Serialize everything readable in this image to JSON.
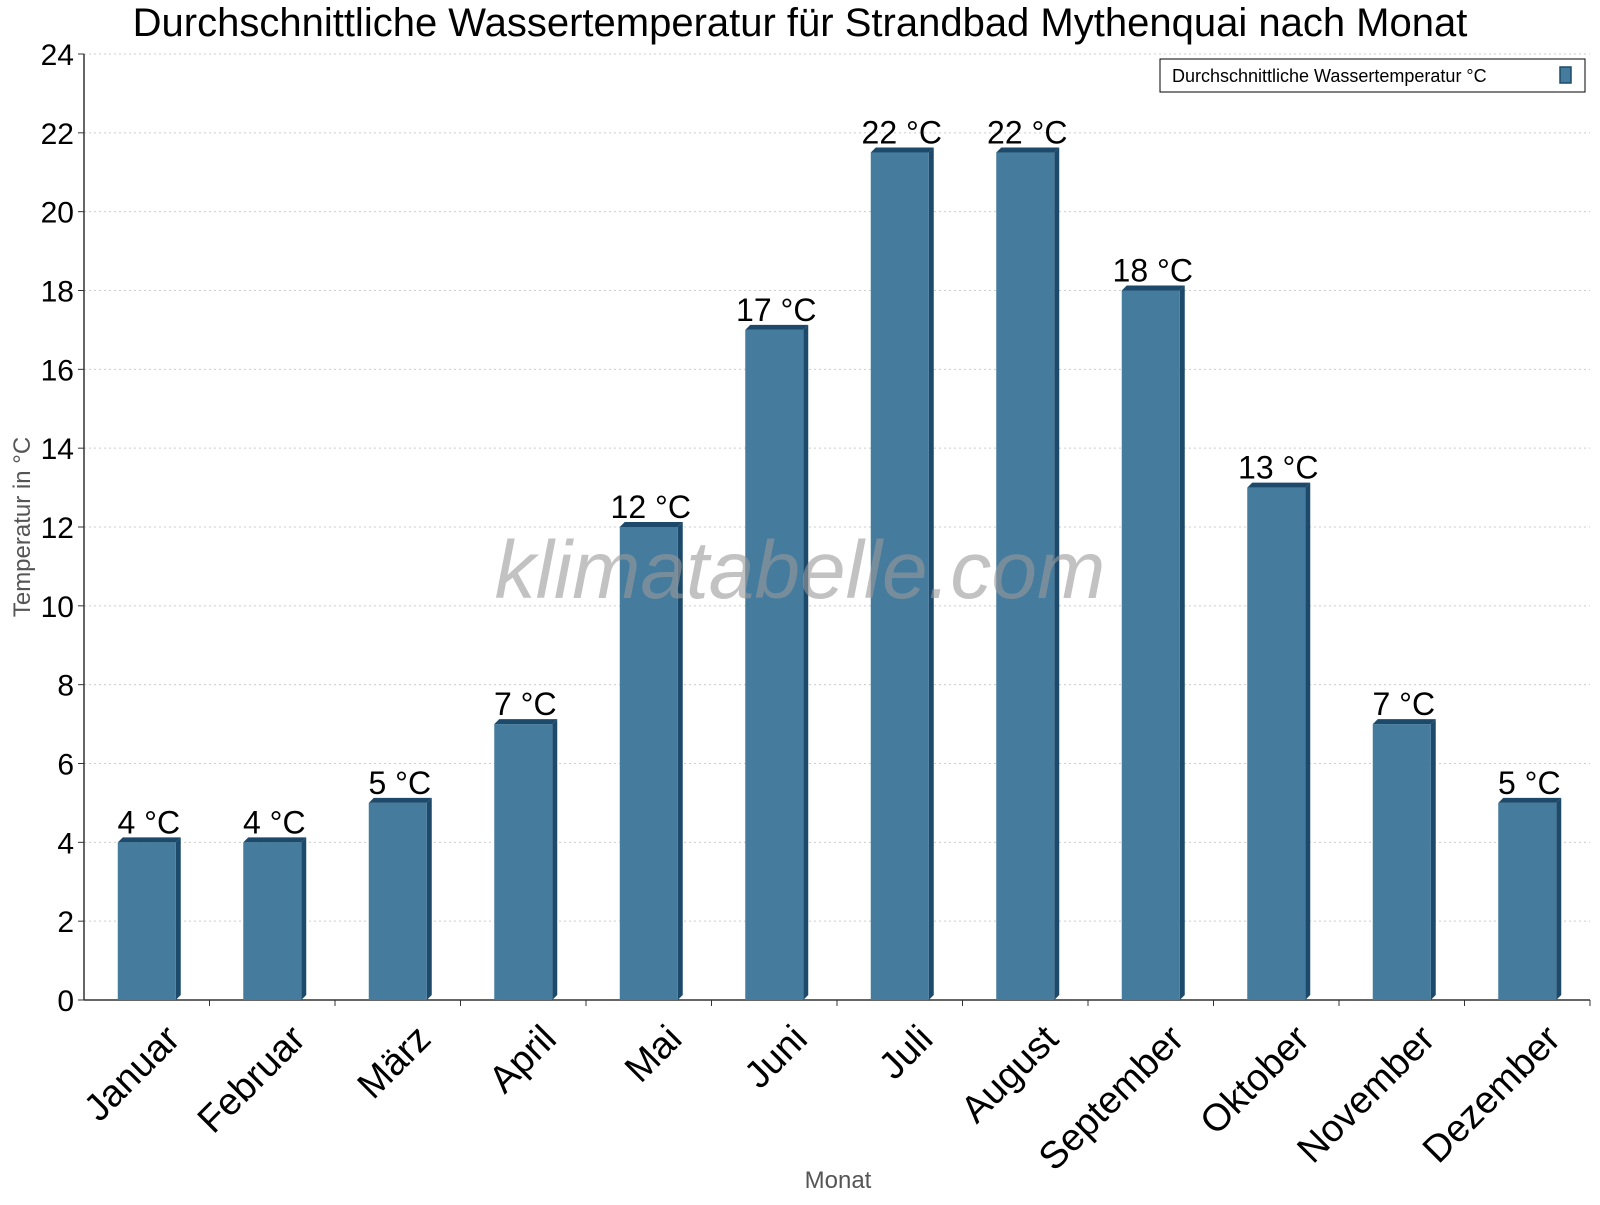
{
  "chart_data": {
    "type": "bar",
    "title": "Durchschnittliche Wassertemperatur für Strandbad Mythenquai nach Monat",
    "xlabel": "Monat",
    "ylabel": "Temperatur in °C",
    "watermark": "klimatabelle.com",
    "legend": {
      "label": "Durchschnittliche Wassertemperatur °C",
      "placement": "top-right"
    },
    "ylim": [
      0,
      24
    ],
    "yticks": [
      0,
      2,
      4,
      6,
      8,
      10,
      12,
      14,
      16,
      18,
      20,
      22,
      24
    ],
    "grid": true,
    "categories": [
      "Januar",
      "Februar",
      "März",
      "April",
      "Mai",
      "Juni",
      "Juli",
      "August",
      "September",
      "Oktober",
      "November",
      "Dezember"
    ],
    "series": [
      {
        "name": "Durchschnittliche Wassertemperatur °C",
        "values": [
          4,
          4,
          5,
          7,
          12,
          17,
          21.5,
          21.5,
          18,
          13,
          7,
          5
        ],
        "labels": [
          "4 °C",
          "4 °C",
          "5 °C",
          "7 °C",
          "12 °C",
          "17 °C",
          "22 °C",
          "22 °C",
          "18 °C",
          "13 °C",
          "7 °C",
          "5 °C"
        ]
      }
    ],
    "colors": {
      "bar": "#457b9d",
      "bar_side": "#1d4a6a",
      "grid": "#cccccc",
      "axis": "#333333",
      "axis_title": "#555555",
      "watermark": "#999999"
    }
  }
}
